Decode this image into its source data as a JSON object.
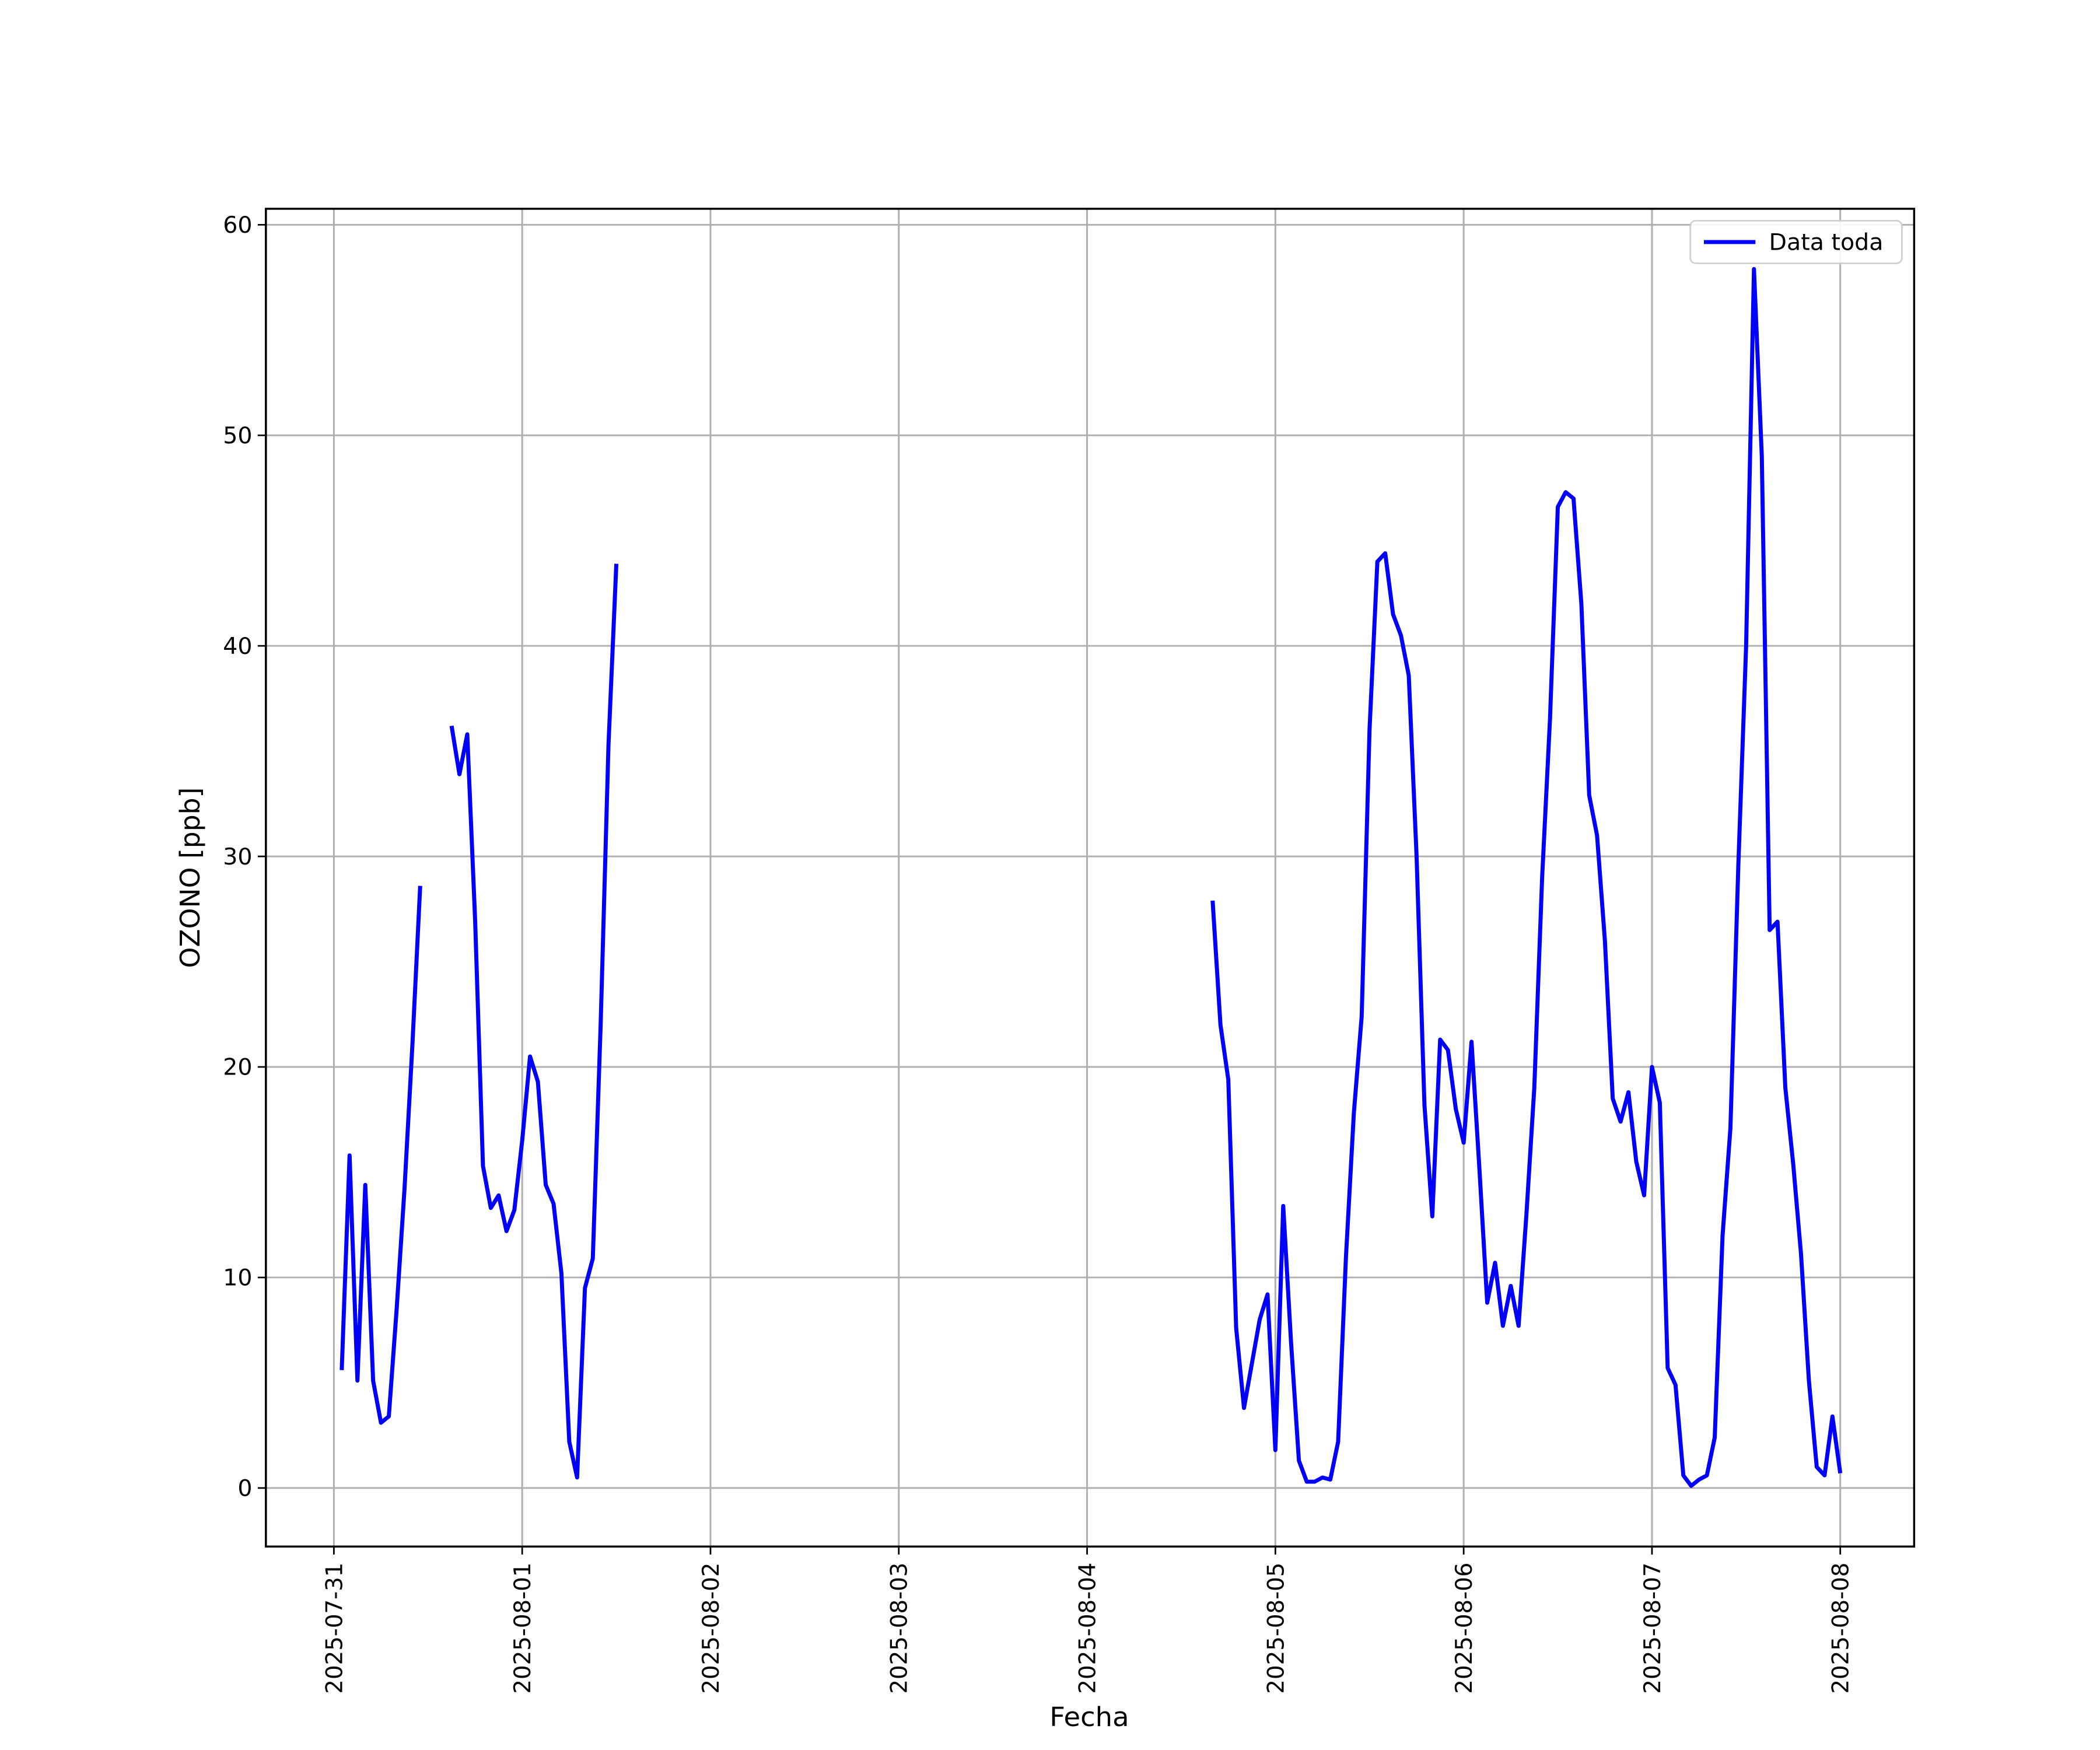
{
  "chart_data": {
    "type": "line",
    "x_label": "Fecha",
    "y_label": "OZONO [ppb]",
    "x": [
      "2025-07-31 01:00",
      "2025-07-31 02:00",
      "2025-07-31 03:00",
      "2025-07-31 04:00",
      "2025-07-31 05:00",
      "2025-07-31 06:00",
      "2025-07-31 07:00",
      "2025-07-31 08:00",
      "2025-07-31 09:00",
      "2025-07-31 10:00",
      "2025-07-31 11:00",
      "2025-07-31 12:00",
      "2025-07-31 15:00",
      "2025-07-31 16:00",
      "2025-07-31 17:00",
      "2025-07-31 18:00",
      "2025-07-31 19:00",
      "2025-07-31 20:00",
      "2025-07-31 21:00",
      "2025-07-31 22:00",
      "2025-07-31 23:00",
      "2025-08-01 00:00",
      "2025-08-01 01:00",
      "2025-08-01 02:00",
      "2025-08-01 03:00",
      "2025-08-01 04:00",
      "2025-08-01 05:00",
      "2025-08-01 06:00",
      "2025-08-01 07:00",
      "2025-08-01 08:00",
      "2025-08-01 09:00",
      "2025-08-01 10:00",
      "2025-08-01 11:00",
      "2025-08-01 12:00",
      "2025-08-01 13:00",
      "2025-08-04 16:00",
      "2025-08-04 17:00",
      "2025-08-04 18:00",
      "2025-08-04 19:00",
      "2025-08-04 20:00",
      "2025-08-04 21:00",
      "2025-08-04 22:00",
      "2025-08-04 23:00",
      "2025-08-05 00:00",
      "2025-08-05 01:00",
      "2025-08-05 02:00",
      "2025-08-05 03:00",
      "2025-08-05 04:00",
      "2025-08-05 05:00",
      "2025-08-05 06:00",
      "2025-08-05 07:00",
      "2025-08-05 08:00",
      "2025-08-05 09:00",
      "2025-08-05 10:00",
      "2025-08-05 11:00",
      "2025-08-05 12:00",
      "2025-08-05 13:00",
      "2025-08-05 14:00",
      "2025-08-05 15:00",
      "2025-08-05 16:00",
      "2025-08-05 17:00",
      "2025-08-05 18:00",
      "2025-08-05 19:00",
      "2025-08-05 20:00",
      "2025-08-05 21:00",
      "2025-08-05 22:00",
      "2025-08-05 23:00",
      "2025-08-06 00:00",
      "2025-08-06 01:00",
      "2025-08-06 02:00",
      "2025-08-06 03:00",
      "2025-08-06 04:00",
      "2025-08-06 05:00",
      "2025-08-06 06:00",
      "2025-08-06 07:00",
      "2025-08-06 08:00",
      "2025-08-06 09:00",
      "2025-08-06 10:00",
      "2025-08-06 11:00",
      "2025-08-06 12:00",
      "2025-08-06 13:00",
      "2025-08-06 14:00",
      "2025-08-06 15:00",
      "2025-08-06 16:00",
      "2025-08-06 17:00",
      "2025-08-06 18:00",
      "2025-08-06 19:00",
      "2025-08-06 20:00",
      "2025-08-06 21:00",
      "2025-08-06 22:00",
      "2025-08-06 23:00",
      "2025-08-07 00:00",
      "2025-08-07 01:00",
      "2025-08-07 02:00",
      "2025-08-07 03:00",
      "2025-08-07 04:00",
      "2025-08-07 05:00",
      "2025-08-07 06:00",
      "2025-08-07 07:00",
      "2025-08-07 08:00",
      "2025-08-07 09:00",
      "2025-08-07 10:00",
      "2025-08-07 11:00",
      "2025-08-07 12:00",
      "2025-08-07 13:00",
      "2025-08-07 14:00",
      "2025-08-07 15:00",
      "2025-08-07 16:00",
      "2025-08-07 17:00",
      "2025-08-07 18:00",
      "2025-08-07 19:00",
      "2025-08-07 20:00",
      "2025-08-07 21:00",
      "2025-08-07 22:00",
      "2025-08-07 23:00",
      "2025-08-08 00:00"
    ],
    "series": [
      {
        "name": "Data toda",
        "color": "#0000ff",
        "values": [
          5.6,
          15.8,
          5.1,
          14.4,
          5.1,
          3.1,
          3.4,
          8.5,
          14.2,
          21,
          28.6,
          null,
          36.2,
          33.9,
          35.8,
          27,
          15.3,
          13.3,
          13.9,
          12.2,
          13.2,
          16.5,
          20.5,
          19.3,
          14.4,
          13.5,
          10.2,
          2.2,
          0.5,
          9.5,
          10.9,
          22,
          35.3,
          43.9,
          null,
          27.9,
          22,
          19.4,
          7.6,
          3.8,
          5.9,
          8,
          9.2,
          1.8,
          13.4,
          6.9,
          1.3,
          0.3,
          0.3,
          0.5,
          0.4,
          2.2,
          11,
          17.8,
          22.4,
          36,
          44,
          44.4,
          41.5,
          40.5,
          38.6,
          30,
          18.2,
          12.9,
          21.3,
          20.8,
          18,
          16.4,
          21.2,
          15.2,
          8.8,
          10.7,
          7.7,
          9.6,
          7.7,
          13,
          19,
          29,
          36.5,
          46.6,
          47.3,
          47,
          42,
          32.9,
          31,
          26,
          18.5,
          17.4,
          18.8,
          15.5,
          13.9,
          20,
          18.3,
          5.7,
          4.9,
          0.6,
          0.1,
          0.4,
          0.6,
          2.4,
          12,
          17.1,
          29.5,
          40,
          57.9,
          49,
          26.5,
          26.9,
          19,
          15.4,
          11.1,
          5.1,
          1,
          0.6,
          3.4,
          0.7
        ]
      }
    ],
    "xlim": [
      "2025-07-30 15:20",
      "2025-08-08 09:25"
    ],
    "xticks": [
      "2025-07-31",
      "2025-08-01",
      "2025-08-02",
      "2025-08-03",
      "2025-08-04",
      "2025-08-05",
      "2025-08-06",
      "2025-08-07",
      "2025-08-08"
    ],
    "ylim": [
      -2.78,
      60.76
    ],
    "yticks": [
      0,
      10,
      20,
      30,
      40,
      50,
      60
    ],
    "grid": true,
    "legend": "upper right"
  }
}
